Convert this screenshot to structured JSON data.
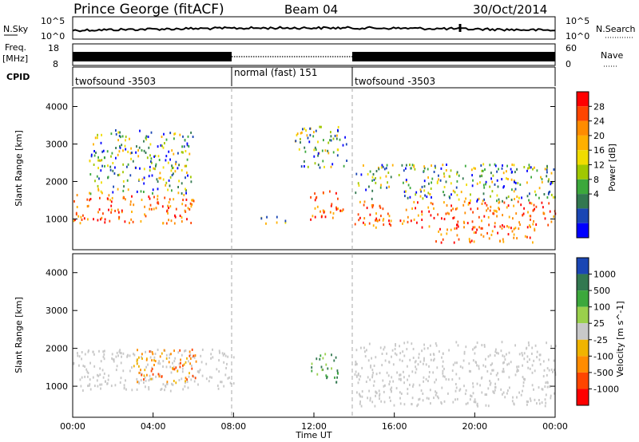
{
  "header": {
    "station": "Prince George (fitACF)",
    "beam": "Beam 04",
    "date": "30/Oct/2014"
  },
  "noise_panel": {
    "left_label": "N.Sky",
    "right_label": "N.Search",
    "ticks": [
      "10^5",
      "10^0"
    ]
  },
  "freq_panel": {
    "left_label_1": "Freq.",
    "left_label_2": "[MHz]",
    "right_label": "Nave",
    "left_ticks": [
      "18",
      "8"
    ],
    "right_ticks": [
      "60",
      "0"
    ]
  },
  "cpid_panel": {
    "label": "CPID",
    "segments": [
      {
        "name": "twofsound -3503",
        "start_hour": 0,
        "end_hour": 8
      },
      {
        "name": "normal (fast) 151",
        "start_hour": 8,
        "end_hour": 14
      },
      {
        "name": "twofsound -3503",
        "start_hour": 14,
        "end_hour": 24
      }
    ]
  },
  "chart_data": [
    {
      "type": "heatmap",
      "title": "",
      "xlabel": "Time UT",
      "ylabel": "Slant Range [km]",
      "xlim": [
        0,
        24
      ],
      "ylim": [
        180,
        4500
      ],
      "y_ticks": [
        "1000",
        "2000",
        "3000",
        "4000"
      ],
      "x_ticks": [
        "00:00",
        "04:00",
        "08:00",
        "12:00",
        "16:00",
        "20:00",
        "00:00"
      ],
      "colorbar": {
        "label": "Power [dB]",
        "ticks": [
          "28",
          "24",
          "20",
          "16",
          "12",
          "8",
          "4"
        ],
        "colors": [
          "#ff0000",
          "#ff4500",
          "#ff8c00",
          "#ffb000",
          "#f0dc00",
          "#a0c800",
          "#3ca83c",
          "#327850",
          "#1a46b4",
          "#0000ff"
        ]
      },
      "regions": [
        {
          "t0": 0.0,
          "t1": 6.0,
          "r0": 900,
          "r1": 1700,
          "level": "high"
        },
        {
          "t0": 0.8,
          "t1": 6.0,
          "r0": 1700,
          "r1": 3400,
          "level": "medium"
        },
        {
          "t0": 9.3,
          "t1": 10.8,
          "r0": 900,
          "r1": 1100,
          "level": "medium"
        },
        {
          "t0": 11.0,
          "t1": 13.6,
          "r0": 2400,
          "r1": 3500,
          "level": "medium"
        },
        {
          "t0": 11.8,
          "t1": 13.5,
          "r0": 1000,
          "r1": 1800,
          "level": "high"
        },
        {
          "t0": 14.0,
          "t1": 24.0,
          "r0": 800,
          "r1": 1500,
          "level": "high"
        },
        {
          "t0": 18.0,
          "t1": 23.2,
          "r0": 400,
          "r1": 800,
          "level": "high"
        },
        {
          "t0": 14.0,
          "t1": 24.0,
          "r0": 1500,
          "r1": 2500,
          "level": "medium"
        }
      ]
    },
    {
      "type": "heatmap",
      "title": "",
      "xlabel": "Time UT",
      "ylabel": "Slant Range [km]",
      "xlim": [
        0,
        24
      ],
      "ylim": [
        180,
        4500
      ],
      "y_ticks": [
        "1000",
        "2000",
        "3000",
        "4000"
      ],
      "x_ticks": [
        "00:00",
        "04:00",
        "08:00",
        "12:00",
        "16:00",
        "20:00",
        "00:00"
      ],
      "colorbar": {
        "label": "Velocity [m s^-1]",
        "ticks": [
          "1000",
          "500",
          "100",
          "25",
          "-25",
          "-100",
          "-500",
          "-1000"
        ],
        "colors": [
          "#1a46b4",
          "#327850",
          "#3ca83c",
          "#9ad04c",
          "#c8c8c8",
          "#f0b400",
          "#ff8c00",
          "#ff4500",
          "#ff0000"
        ]
      },
      "regions": [
        {
          "t0": 0.0,
          "t1": 8.0,
          "r0": 900,
          "r1": 2000,
          "level": "ground-scatter"
        },
        {
          "t0": 3.0,
          "t1": 6.2,
          "r0": 1100,
          "r1": 2000,
          "level": "negative"
        },
        {
          "t0": 11.8,
          "t1": 13.2,
          "r0": 1100,
          "r1": 1900,
          "level": "positive"
        },
        {
          "t0": 14.0,
          "t1": 24.0,
          "r0": 500,
          "r1": 2200,
          "level": "ground-scatter"
        }
      ]
    }
  ],
  "time_axis": {
    "label": "Time UT",
    "ticks": [
      "00:00",
      "04:00",
      "08:00",
      "12:00",
      "16:00",
      "20:00",
      "00:00"
    ]
  }
}
